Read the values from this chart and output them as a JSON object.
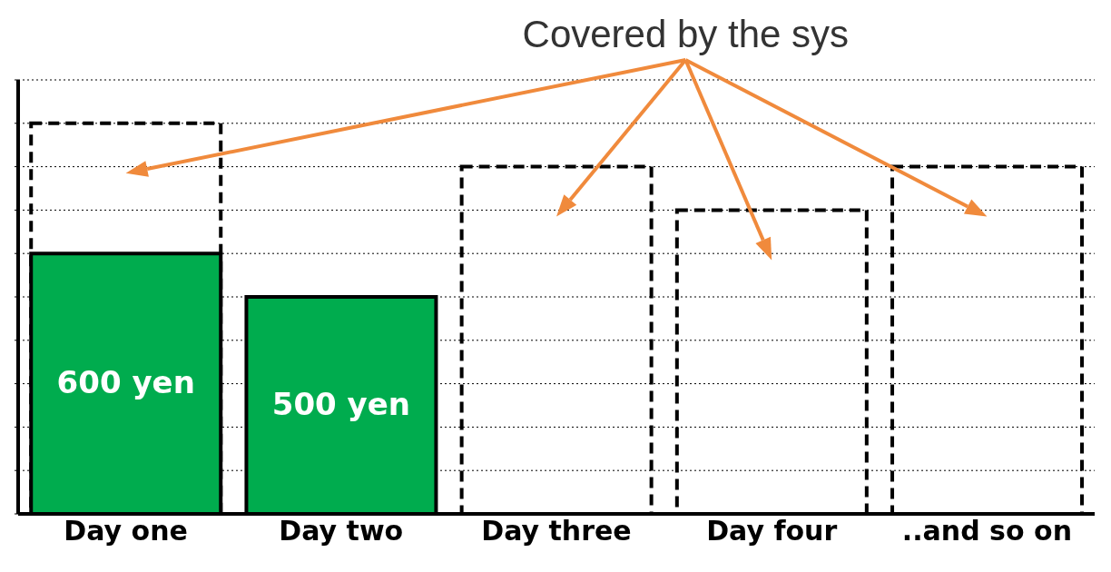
{
  "chart_data": {
    "type": "bar",
    "title": "Covered by the sys",
    "categories": [
      "Day one",
      "Day two",
      "Day three",
      "Day four",
      "..and so on"
    ],
    "series": [
      {
        "color": "#000000",
        "line_style": "dashed",
        "values": [
          900,
          null,
          800,
          700,
          800
        ]
      },
      {
        "color": "#00ac4e",
        "values": [
          600,
          500,
          null,
          null,
          null
        ],
        "value_labels": [
          "600 yen",
          "500 yen",
          null,
          null,
          null
        ]
      }
    ],
    "ylim": [
      0,
      1000
    ],
    "grid": "y",
    "tick_labels": "x",
    "legend": false
  }
}
